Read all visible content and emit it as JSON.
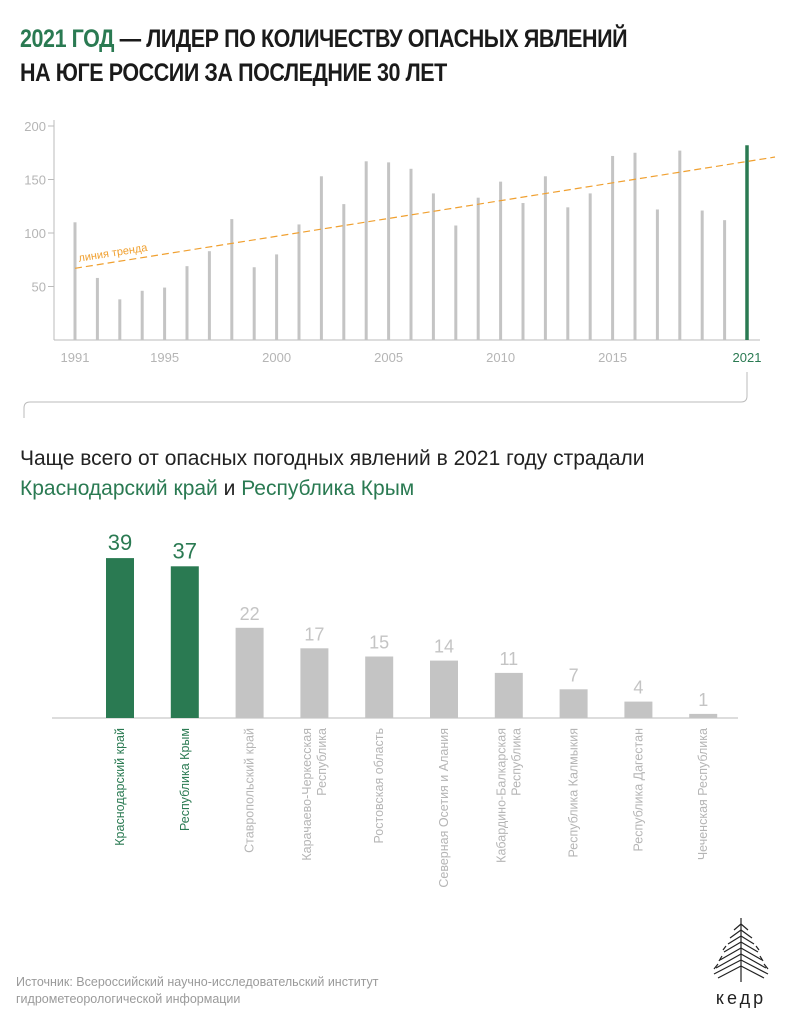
{
  "title": {
    "highlight": "2021 год",
    "rest": " — лидер по количеству опасных явлений на юге России за последние 30 лет"
  },
  "colors": {
    "accent": "#2a7a52",
    "bar": "#c4c4c4",
    "trend": "#f0a030",
    "axis": "#bbbbbb",
    "tick": "#b5b5b5"
  },
  "subtitle": {
    "line1": "Чаще всего от опасных погодных явлений в 2021 году страдали",
    "region1": "Краснодарский край",
    "conj": " и ",
    "region2": "Республика Крым"
  },
  "source": "Источник: Всероссийский научно-исследовательский институт гидрометеорологической информации",
  "logo": {
    "text": "кедр"
  },
  "chart_data": [
    {
      "type": "bar",
      "title": "2021 год — лидер по количеству опасных явлений на юге России за последние 30 лет",
      "x": [
        1991,
        1992,
        1993,
        1994,
        1995,
        1996,
        1997,
        1998,
        1999,
        2000,
        2001,
        2002,
        2003,
        2004,
        2005,
        2006,
        2007,
        2008,
        2009,
        2010,
        2011,
        2012,
        2013,
        2014,
        2015,
        2016,
        2017,
        2018,
        2019,
        2020,
        2021
      ],
      "values": [
        110,
        58,
        38,
        46,
        49,
        69,
        83,
        113,
        68,
        80,
        108,
        153,
        127,
        167,
        166,
        160,
        137,
        107,
        133,
        148,
        128,
        153,
        124,
        137,
        172,
        175,
        122,
        177,
        121,
        112,
        182
      ],
      "xticks": [
        "1991",
        "1995",
        "2000",
        "2005",
        "2010",
        "2015",
        "2021"
      ],
      "yticks": [
        50,
        100,
        150,
        200
      ],
      "ylim": [
        0,
        200
      ],
      "highlight": "2021",
      "trend": {
        "label": "линия тренда",
        "start": 67,
        "end": 171
      }
    },
    {
      "type": "bar",
      "title": "Чаще всего от опасных погодных явлений в 2021 году страдали Краснодарский край и Республика Крым",
      "categories": [
        [
          "Краснодарский край"
        ],
        [
          "Республика Крым"
        ],
        [
          "Ставропольский край"
        ],
        [
          "Карачаево-Черкесская",
          "Республика"
        ],
        [
          "Ростовская область"
        ],
        [
          "Северная Осетия и Алания"
        ],
        [
          "Кабардино-Балкарская",
          "Республика"
        ],
        [
          "Республика Калмыкия"
        ],
        [
          "Республика Дагестан"
        ],
        [
          "Чеченская Республика"
        ]
      ],
      "values": [
        39,
        37,
        22,
        17,
        15,
        14,
        11,
        7,
        4,
        1
      ],
      "highlighted": [
        true,
        true,
        false,
        false,
        false,
        false,
        false,
        false,
        false,
        false
      ]
    }
  ]
}
